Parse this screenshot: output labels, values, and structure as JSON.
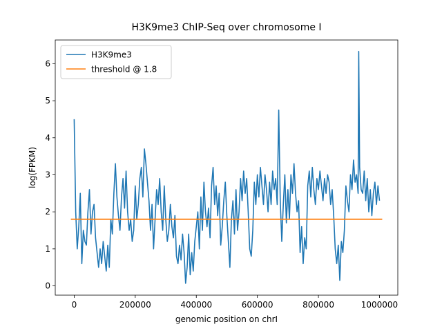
{
  "chart_data": {
    "type": "line",
    "title": "H3K9me3 ChIP-Seq over chromosome I",
    "x_label": "genomic position on chrI",
    "y_label": "log(FPKM)",
    "xlim": [
      -62000,
      1060000
    ],
    "ylim": [
      -0.25,
      6.64
    ],
    "xticks": [
      0,
      200000,
      400000,
      600000,
      800000,
      1000000
    ],
    "yticks": [
      0,
      1,
      2,
      3,
      4,
      5,
      6
    ],
    "legend": "upper left",
    "series": [
      {
        "name": "H3K9me3",
        "color": "#1f77b4",
        "x": [
          0,
          5000,
          10000,
          15000,
          20000,
          25000,
          30000,
          35000,
          40000,
          45000,
          50000,
          55000,
          60000,
          65000,
          70000,
          75000,
          80000,
          85000,
          90000,
          95000,
          100000,
          105000,
          110000,
          115000,
          120000,
          125000,
          130000,
          135000,
          140000,
          145000,
          150000,
          155000,
          160000,
          165000,
          170000,
          175000,
          180000,
          185000,
          190000,
          195000,
          200000,
          205000,
          210000,
          215000,
          220000,
          225000,
          230000,
          235000,
          240000,
          245000,
          250000,
          255000,
          260000,
          265000,
          270000,
          275000,
          280000,
          285000,
          290000,
          295000,
          300000,
          305000,
          310000,
          315000,
          320000,
          325000,
          330000,
          335000,
          340000,
          345000,
          350000,
          355000,
          360000,
          365000,
          370000,
          375000,
          380000,
          385000,
          390000,
          395000,
          400000,
          405000,
          410000,
          415000,
          420000,
          425000,
          430000,
          435000,
          440000,
          445000,
          450000,
          455000,
          460000,
          465000,
          470000,
          475000,
          480000,
          485000,
          490000,
          495000,
          500000,
          505000,
          510000,
          515000,
          520000,
          525000,
          530000,
          535000,
          540000,
          545000,
          550000,
          555000,
          560000,
          565000,
          570000,
          575000,
          580000,
          585000,
          590000,
          595000,
          600000,
          605000,
          610000,
          615000,
          620000,
          625000,
          630000,
          635000,
          640000,
          645000,
          650000,
          655000,
          660000,
          665000,
          670000,
          675000,
          680000,
          685000,
          690000,
          695000,
          700000,
          705000,
          710000,
          715000,
          720000,
          725000,
          730000,
          735000,
          740000,
          745000,
          750000,
          755000,
          760000,
          765000,
          770000,
          775000,
          780000,
          785000,
          790000,
          795000,
          800000,
          805000,
          810000,
          815000,
          820000,
          825000,
          830000,
          835000,
          840000,
          845000,
          850000,
          855000,
          860000,
          865000,
          870000,
          875000,
          880000,
          885000,
          890000,
          895000,
          900000,
          905000,
          910000,
          915000,
          920000,
          925000,
          930000,
          932000,
          935000,
          940000,
          945000,
          950000,
          955000,
          960000,
          965000,
          970000,
          975000,
          980000,
          985000,
          990000,
          995000,
          1000000
        ],
        "values": [
          4.5,
          2.0,
          1.0,
          1.6,
          2.5,
          0.6,
          1.5,
          1.2,
          1.1,
          2.0,
          2.6,
          1.4,
          2.0,
          2.2,
          1.3,
          0.9,
          0.5,
          1.0,
          0.6,
          1.2,
          0.8,
          0.4,
          1.1,
          0.5,
          1.8,
          1.4,
          2.5,
          3.3,
          2.4,
          1.9,
          1.5,
          2.4,
          2.9,
          2.1,
          3.1,
          2.0,
          1.5,
          1.8,
          1.2,
          1.5,
          2.7,
          1.8,
          2.2,
          2.9,
          3.2,
          2.4,
          3.7,
          3.3,
          2.8,
          2.3,
          1.5,
          2.2,
          1.0,
          1.8,
          2.6,
          2.2,
          2.9,
          2.0,
          1.5,
          2.7,
          1.8,
          1.2,
          1.5,
          2.2,
          1.6,
          1.3,
          1.9,
          0.8,
          0.6,
          1.1,
          0.7,
          1.4,
          0.9,
          0.07,
          0.5,
          1.4,
          0.3,
          0.9,
          0.4,
          1.2,
          1.6,
          2.0,
          1.0,
          2.4,
          1.5,
          2.8,
          2.0,
          1.6,
          2.1,
          1.3,
          2.7,
          3.2,
          2.2,
          2.7,
          1.9,
          2.5,
          1.1,
          1.6,
          2.3,
          2.8,
          1.9,
          1.2,
          0.5,
          1.8,
          2.3,
          1.4,
          2.6,
          1.5,
          2.0,
          2.9,
          2.3,
          3.1,
          2.5,
          2.9,
          2.0,
          1.0,
          0.8,
          1.5,
          2.8,
          2.2,
          3.0,
          2.4,
          3.2,
          2.7,
          2.2,
          3.0,
          2.6,
          2.0,
          2.8,
          2.2,
          3.1,
          2.6,
          2.9,
          2.2,
          4.75,
          2.3,
          1.2,
          2.2,
          3.0,
          1.7,
          2.6,
          1.8,
          3.0,
          2.5,
          3.3,
          2.5,
          2.0,
          2.3,
          0.9,
          1.6,
          0.6,
          1.3,
          1.0,
          2.7,
          3.1,
          2.4,
          3.2,
          2.6,
          2.2,
          2.9,
          2.6,
          3.1,
          2.7,
          2.3,
          2.9,
          2.5,
          3.0,
          2.8,
          2.2,
          2.6,
          1.9,
          1.0,
          0.6,
          1.1,
          0.15,
          1.2,
          0.9,
          1.5,
          2.7,
          2.3,
          2.0,
          3.0,
          2.6,
          3.4,
          2.8,
          3.0,
          2.5,
          6.33,
          3.2,
          2.6,
          2.5,
          3.1,
          2.3,
          2.9,
          2.0,
          2.6,
          1.9,
          2.5,
          2.8,
          2.2,
          2.7,
          2.3
        ]
      },
      {
        "name": "threshold @ 1.8",
        "color": "#ff7f0e",
        "x": [
          -11000,
          1009000
        ],
        "values": [
          1.8,
          1.8
        ]
      }
    ]
  }
}
